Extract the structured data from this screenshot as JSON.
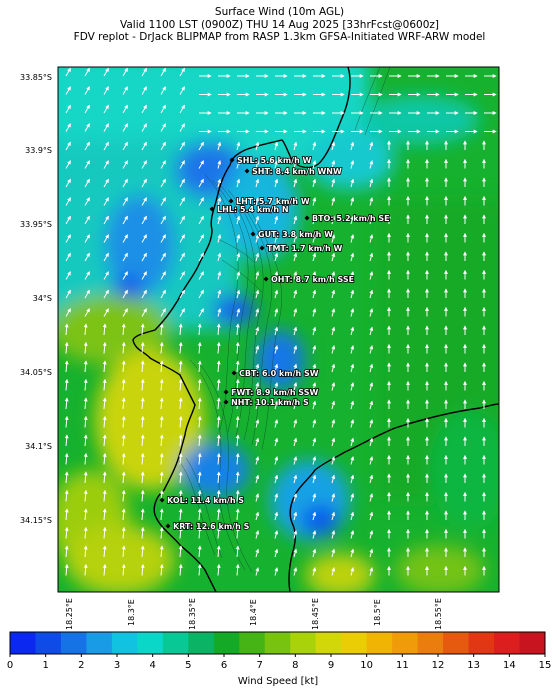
{
  "title": {
    "line1": "Surface Wind (10m AGL)",
    "line2": "Valid 1100 LST (0900Z) THU 14 Aug 2025 [33hrFcst@0600z]",
    "line3": "FDV replot - DrJack BLIPMAP from RASP 1.3km GFSA-Initiated WRF-ARW model"
  },
  "lat_ticks": [
    "33.85°S",
    "33.9°S",
    "33.95°S",
    "34°S",
    "34.05°S",
    "34.1°S",
    "34.15°S"
  ],
  "lon_ticks": [
    "18.25°E",
    "18.3°E",
    "18.35°E",
    "18.4°E",
    "18.45°E",
    "18.5°E",
    "18.55°E"
  ],
  "stations": [
    {
      "code": "SHL",
      "label": "SHL: 5.6 km/h W",
      "speed_kmh": 5.6,
      "dir": "W"
    },
    {
      "code": "SHT",
      "label": "SHT: 8.4 km/h WNW",
      "speed_kmh": 8.4,
      "dir": "WNW"
    },
    {
      "code": "LHT",
      "label": "LHT: 5.7 km/h W",
      "speed_kmh": 5.7,
      "dir": "W"
    },
    {
      "code": "LHL",
      "label": "LHL: 5.4 km/h N",
      "speed_kmh": 5.4,
      "dir": "N"
    },
    {
      "code": "BTO",
      "label": "BTO: 5.2 km/h SE",
      "speed_kmh": 5.2,
      "dir": "SE"
    },
    {
      "code": "GUT",
      "label": "GUT: 3.8 km/h W",
      "speed_kmh": 3.8,
      "dir": "W"
    },
    {
      "code": "TMT",
      "label": "TMT: 1.7 km/h W",
      "speed_kmh": 1.7,
      "dir": "W"
    },
    {
      "code": "OHT",
      "label": "OHT: 8.7 km/h SSE",
      "speed_kmh": 8.7,
      "dir": "SSE"
    },
    {
      "code": "CBT",
      "label": "CBT: 6.0 km/h SW",
      "speed_kmh": 6.0,
      "dir": "SW"
    },
    {
      "code": "FWT",
      "label": "FWT: 8.9 km/h SSW",
      "speed_kmh": 8.9,
      "dir": "SSW"
    },
    {
      "code": "NHT",
      "label": "NHT: 10.1 km/h S",
      "speed_kmh": 10.1,
      "dir": "S"
    },
    {
      "code": "KOL",
      "label": "KOL: 11.4 km/h S",
      "speed_kmh": 11.4,
      "dir": "S"
    },
    {
      "code": "KRT",
      "label": "KRT: 12.6 km/h S",
      "speed_kmh": 12.6,
      "dir": "S"
    }
  ],
  "colorbar": {
    "label": "Wind Speed [kt]",
    "min": 0,
    "max": 15,
    "ticks": [
      "0",
      "1",
      "2",
      "3",
      "4",
      "5",
      "6",
      "7",
      "8",
      "9",
      "10",
      "11",
      "12",
      "13",
      "14",
      "15"
    ],
    "colors": [
      "#0a28f0",
      "#0f4be6",
      "#1673e6",
      "#199be6",
      "#12c3e1",
      "#0ad7c8",
      "#08c896",
      "#0ab464",
      "#14aa28",
      "#46b414",
      "#78c30f",
      "#aad20a",
      "#d2d70a",
      "#ebcd05",
      "#f0b405",
      "#f09b0a",
      "#eb7d0f",
      "#e65a0f",
      "#e13714",
      "#dc1e1e",
      "#c8141e"
    ]
  }
}
